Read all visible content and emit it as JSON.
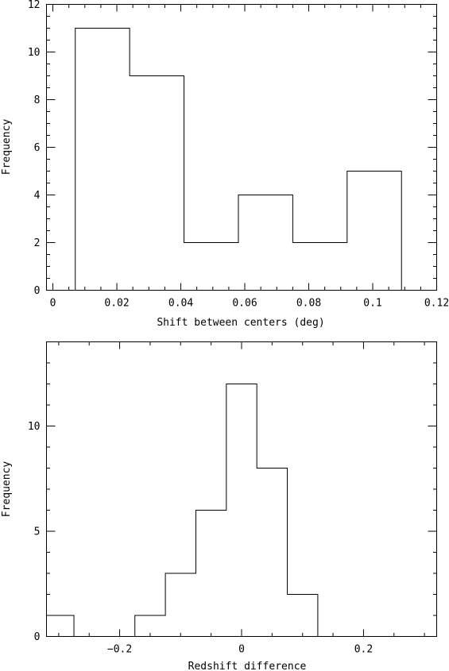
{
  "chart_data": [
    {
      "type": "histogram",
      "title": "",
      "xlabel": "Shift between centers (deg)",
      "ylabel": "Frequency",
      "xlim": [
        -0.002,
        0.12
      ],
      "ylim": [
        0,
        12
      ],
      "x_ticks": [
        0,
        0.02,
        0.04,
        0.06,
        0.08,
        0.1,
        0.12
      ],
      "x_tick_labels": [
        "0",
        "0.02",
        "0.04",
        "0.06",
        "0.08",
        "0.1",
        "0.12"
      ],
      "x_minor_step": 0.005,
      "y_ticks": [
        0,
        2,
        4,
        6,
        8,
        10,
        12
      ],
      "y_tick_labels": [
        "0",
        "2",
        "4",
        "6",
        "8",
        "10",
        "12"
      ],
      "y_minor_step": 0.5,
      "bin_edges": [
        -0.002,
        0.007,
        0.024,
        0.041,
        0.058,
        0.075,
        0.092,
        0.109,
        0.12
      ],
      "counts": [
        0,
        11,
        9,
        2,
        4,
        2,
        5,
        0
      ]
    },
    {
      "type": "histogram",
      "title": "",
      "xlabel": "Redshift difference",
      "ylabel": "Frequency",
      "xlim": [
        -0.32,
        0.32
      ],
      "ylim": [
        0,
        14
      ],
      "x_ticks": [
        -0.2,
        0,
        0.2
      ],
      "x_tick_labels": [
        "−0.2",
        "0",
        "0.2"
      ],
      "x_minor_step": 0.05,
      "y_ticks": [
        0,
        5,
        10
      ],
      "y_tick_labels": [
        "0",
        "5",
        "10"
      ],
      "y_minor_step": 1,
      "bin_edges": [
        -0.32,
        -0.275,
        -0.225,
        -0.175,
        -0.125,
        -0.075,
        -0.025,
        0.025,
        0.075,
        0.125,
        0.175,
        0.23
      ],
      "counts": [
        1,
        0,
        0,
        1,
        3,
        6,
        12,
        8,
        2,
        0,
        0
      ]
    }
  ]
}
